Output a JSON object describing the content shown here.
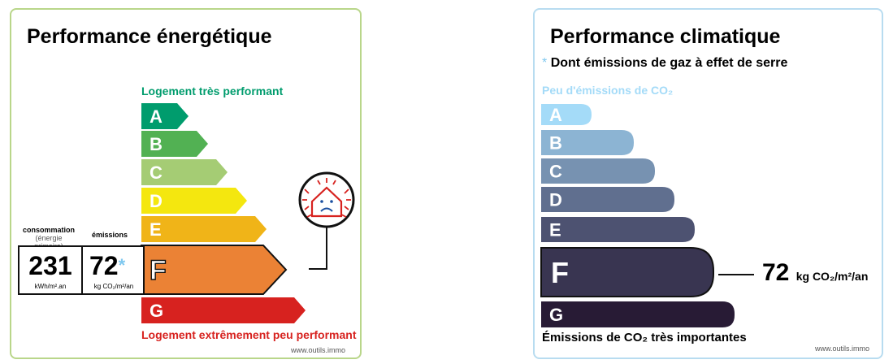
{
  "energy": {
    "title": "Performance énergétique",
    "top_label": "Logement très performant",
    "bottom_label": "Logement extrêmement peu performant",
    "watermark": "www.outils.immo",
    "current_class": "F",
    "classes": [
      {
        "letter": "A",
        "color": "#009c6d"
      },
      {
        "letter": "B",
        "color": "#52b153"
      },
      {
        "letter": "C",
        "color": "#a5cc74"
      },
      {
        "letter": "D",
        "color": "#f4e70f"
      },
      {
        "letter": "E",
        "color": "#f0b418"
      },
      {
        "letter": "F",
        "color": "#eb8235"
      },
      {
        "letter": "G",
        "color": "#d7221f"
      }
    ],
    "consumption": {
      "caption": "consommation",
      "caption2": "(énergie primaire)",
      "value": "231",
      "unit": "kWh/m².an"
    },
    "emissions": {
      "caption": "émissions",
      "value": "72",
      "star": "*",
      "unit": "kg CO₂/m²/an"
    },
    "passoire_icon": "cold-house-sad-icon"
  },
  "climate": {
    "title": "Performance climatique",
    "star": "*",
    "subtitle": "Dont émissions de gaz à effet de serre",
    "top_label": "Peu d'émissions de CO₂",
    "bottom_label": "Émissions de CO₂ très importantes",
    "watermark": "www.outils.immo",
    "current_class": "F",
    "value": "72",
    "unit": "kg CO₂/m²/an",
    "classes": [
      {
        "letter": "A",
        "color": "#a4dbf8"
      },
      {
        "letter": "B",
        "color": "#8cb4d3"
      },
      {
        "letter": "C",
        "color": "#7792b1"
      },
      {
        "letter": "D",
        "color": "#606f8f"
      },
      {
        "letter": "E",
        "color": "#4d5271"
      },
      {
        "letter": "F",
        "color": "#393551"
      },
      {
        "letter": "G",
        "color": "#281b35"
      }
    ]
  }
}
